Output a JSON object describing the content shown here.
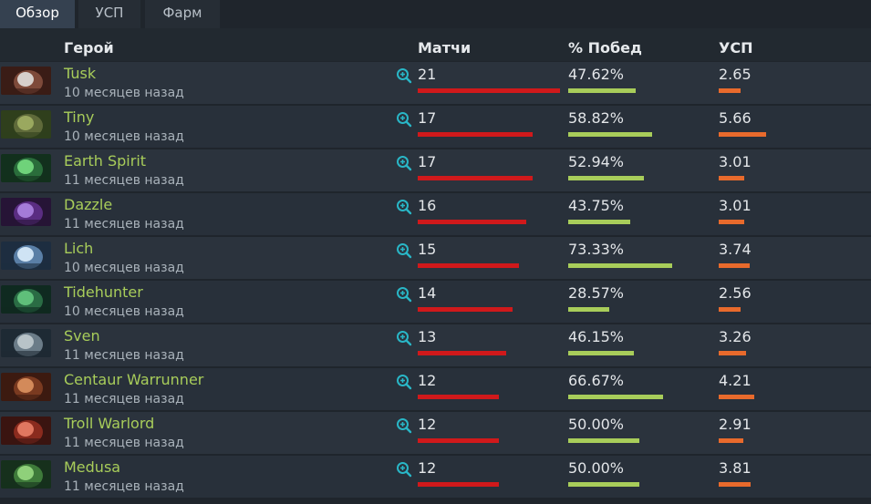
{
  "tabs": [
    {
      "label": "Обзор",
      "active": true
    },
    {
      "label": "УСП",
      "active": false
    },
    {
      "label": "Фарм",
      "active": false
    }
  ],
  "columns": {
    "hero": "Герой",
    "matches": "Матчи",
    "winrate": "% Побед",
    "kda": "УСП"
  },
  "colors": {
    "hero_name": "#a8cd5a",
    "matches_bar": "#d0191b",
    "winrate_bar": "#a8cd5a",
    "kda_bar": "#e86a2c"
  },
  "icons": {
    "zoom": "magnifier-plus-icon"
  },
  "rows": [
    {
      "hero": "Tusk",
      "time": "10 месяцев назад",
      "matches": "21",
      "winrate": "47.62%",
      "kda": "2.65",
      "matches_value": 21,
      "winrate_value": 47.62,
      "kda_value": 2.65,
      "portrait": [
        "#3a1c16",
        "#d7d0cc",
        "#7e4a3a"
      ]
    },
    {
      "hero": "Tiny",
      "time": "10 месяцев назад",
      "matches": "17",
      "winrate": "58.82%",
      "kda": "5.66",
      "matches_value": 17,
      "winrate_value": 58.82,
      "kda_value": 5.66,
      "portrait": [
        "#2f3f1c",
        "#9aa85f",
        "#5f6a3a"
      ]
    },
    {
      "hero": "Earth Spirit",
      "time": "11 месяцев назад",
      "matches": "17",
      "winrate": "52.94%",
      "kda": "3.01",
      "matches_value": 17,
      "winrate_value": 52.94,
      "kda_value": 3.01,
      "portrait": [
        "#12301d",
        "#6fd27a",
        "#2a6d3b"
      ]
    },
    {
      "hero": "Dazzle",
      "time": "11 месяцев назад",
      "matches": "16",
      "winrate": "43.75%",
      "kda": "3.01",
      "matches_value": 16,
      "winrate_value": 43.75,
      "kda_value": 3.01,
      "portrait": [
        "#261436",
        "#a47bd8",
        "#5a2d82"
      ]
    },
    {
      "hero": "Lich",
      "time": "10 месяцев назад",
      "matches": "15",
      "winrate": "73.33%",
      "kda": "3.74",
      "matches_value": 15,
      "winrate_value": 73.33,
      "kda_value": 3.74,
      "portrait": [
        "#1d2d40",
        "#cfe3f4",
        "#5a7fa6"
      ]
    },
    {
      "hero": "Tidehunter",
      "time": "10 месяцев назад",
      "matches": "14",
      "winrate": "28.57%",
      "kda": "2.56",
      "matches_value": 14,
      "winrate_value": 28.57,
      "kda_value": 2.56,
      "portrait": [
        "#0f2a20",
        "#5fbf7a",
        "#2a6c44"
      ]
    },
    {
      "hero": "Sven",
      "time": "11 месяцев назад",
      "matches": "13",
      "winrate": "46.15%",
      "kda": "3.26",
      "matches_value": 13,
      "winrate_value": 46.15,
      "kda_value": 3.26,
      "portrait": [
        "#1e2a34",
        "#b8c3c8",
        "#6b7c88"
      ]
    },
    {
      "hero": "Centaur Warrunner",
      "time": "11 месяцев назад",
      "matches": "12",
      "winrate": "66.67%",
      "kda": "4.21",
      "matches_value": 12,
      "winrate_value": 66.67,
      "kda_value": 4.21,
      "portrait": [
        "#3c1a10",
        "#d38a5a",
        "#7a3a20"
      ]
    },
    {
      "hero": "Troll Warlord",
      "time": "11 месяцев назад",
      "matches": "12",
      "winrate": "50.00%",
      "kda": "2.91",
      "matches_value": 12,
      "winrate_value": 50.0,
      "kda_value": 2.91,
      "portrait": [
        "#3a1410",
        "#e07760",
        "#8a2b1e"
      ]
    },
    {
      "hero": "Medusa",
      "time": "11 месяцев назад",
      "matches": "12",
      "winrate": "50.00%",
      "kda": "3.81",
      "matches_value": 12,
      "winrate_value": 50.0,
      "kda_value": 3.81,
      "portrait": [
        "#16301c",
        "#8fd07a",
        "#3e7a3a"
      ]
    }
  ]
}
